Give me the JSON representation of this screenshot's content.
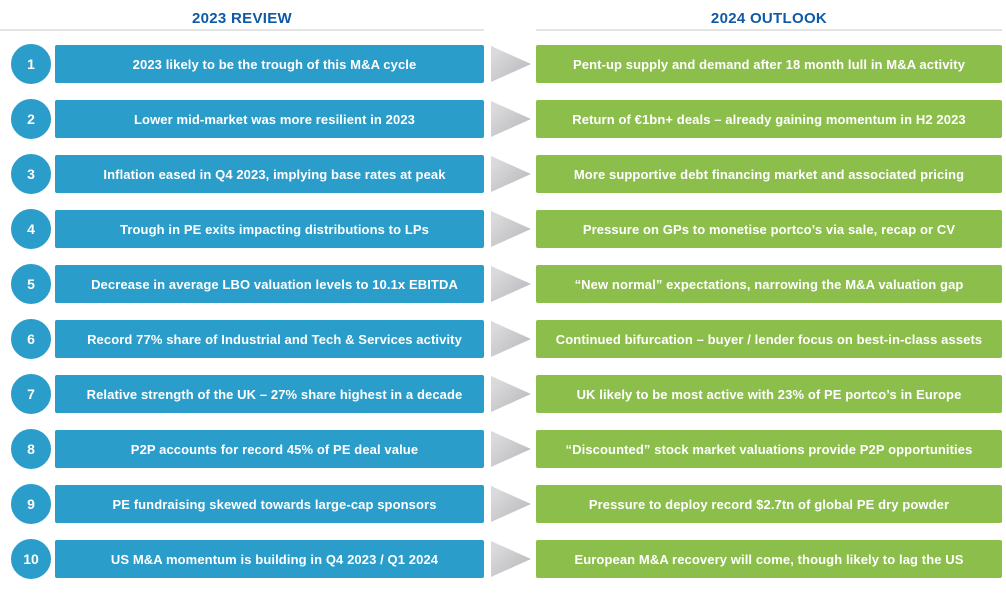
{
  "header": {
    "left_title": "2023 REVIEW",
    "right_title": "2024 OUTLOOK"
  },
  "colors": {
    "review_bar_blue": "#2b9dca",
    "outlook_bar_green": "#8cbe4c",
    "header_text_blue": "#0e5aa7",
    "arrow_gray": "#c6c6ca",
    "header_rule_gray": "#e4e4e4"
  },
  "rows": [
    {
      "number": "1",
      "review": "2023 likely to be the trough of this M&A cycle",
      "outlook": "Pent-up supply and demand after 18 month lull in M&A activity"
    },
    {
      "number": "2",
      "review": "Lower mid-market was more resilient in 2023",
      "outlook": "Return of €1bn+ deals – already gaining momentum in H2 2023"
    },
    {
      "number": "3",
      "review": "Inflation eased in Q4 2023, implying base rates at peak",
      "outlook": "More supportive debt financing market and associated pricing"
    },
    {
      "number": "4",
      "review": "Trough in PE exits impacting distributions to LPs",
      "outlook": "Pressure on GPs to monetise portco’s via sale, recap or CV"
    },
    {
      "number": "5",
      "review": "Decrease in average LBO valuation levels to 10.1x EBITDA",
      "outlook": "“New normal” expectations, narrowing the M&A valuation gap"
    },
    {
      "number": "6",
      "review": "Record 77% share of Industrial and Tech & Services activity",
      "outlook": "Continued bifurcation – buyer / lender focus on best-in-class assets"
    },
    {
      "number": "7",
      "review": "Relative strength of the UK – 27% share highest in a decade",
      "outlook": "UK likely to be most active with 23% of PE portco’s in Europe"
    },
    {
      "number": "8",
      "review": "P2P accounts for record 45% of PE deal value",
      "outlook": "“Discounted” stock market valuations provide P2P opportunities"
    },
    {
      "number": "9",
      "review": "PE fundraising skewed towards large-cap sponsors",
      "outlook": "Pressure to deploy record $2.7tn of global PE dry powder"
    },
    {
      "number": "10",
      "review": "US M&A momentum is building in Q4 2023 / Q1 2024",
      "outlook": "European M&A recovery will come, though likely to lag the US"
    }
  ]
}
